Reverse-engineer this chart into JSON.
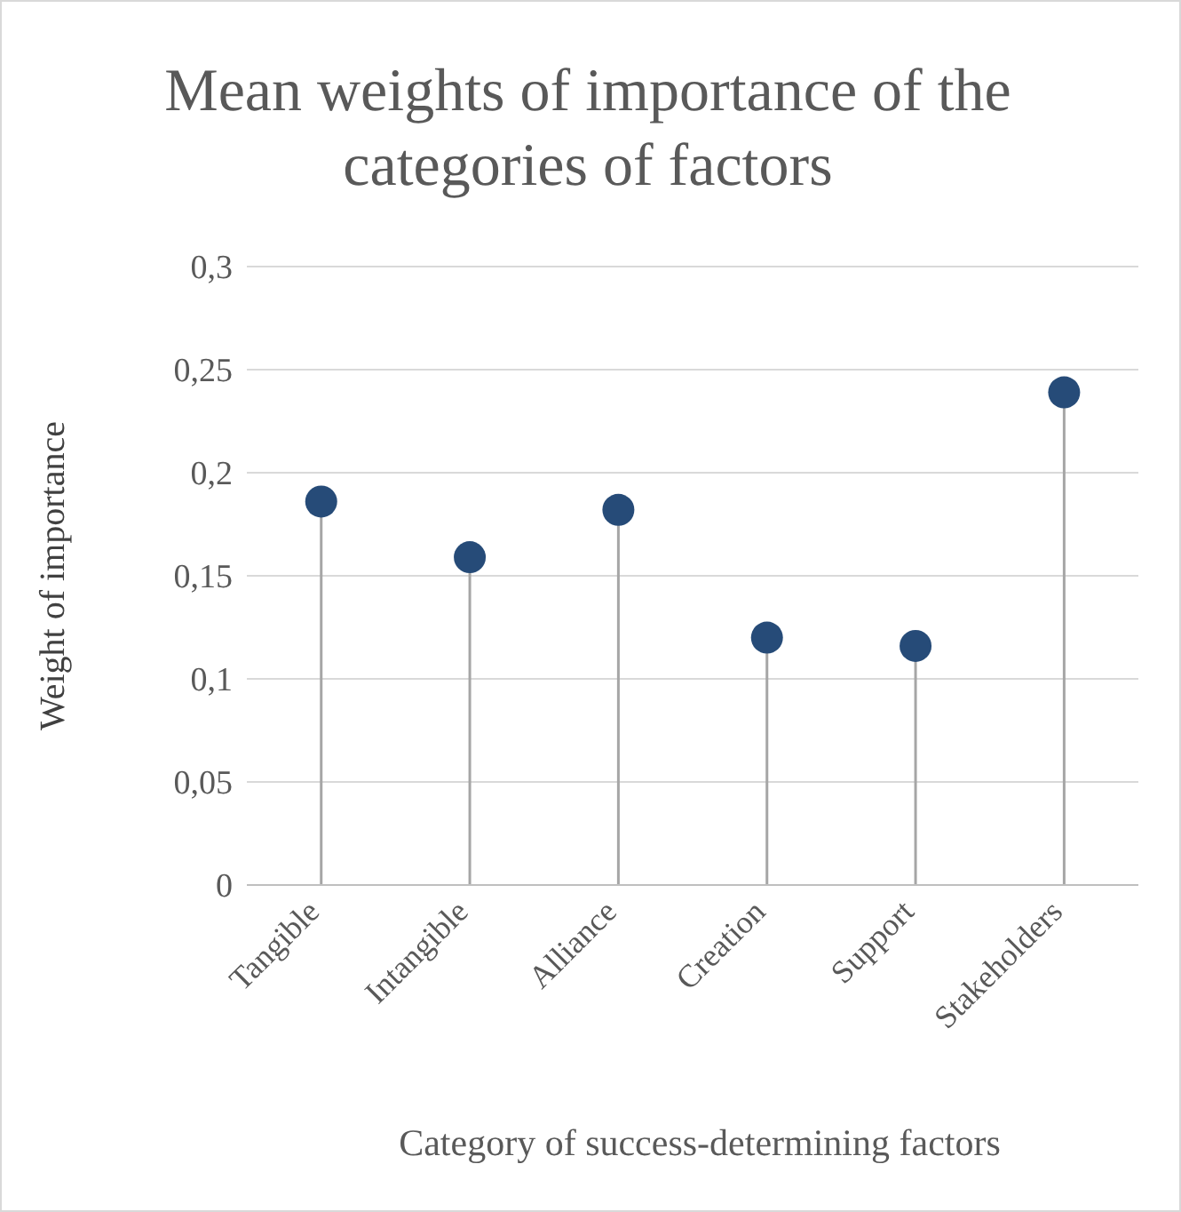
{
  "chart_data": {
    "type": "lollipop",
    "title": "Mean weights of importance of the categories of factors",
    "xlabel": "Category of success-determining factors",
    "ylabel": "Weight of importance",
    "categories": [
      "Tangible",
      "Intangible",
      "Alliance",
      "Creation",
      "Support",
      "Stakeholders"
    ],
    "values": [
      0.186,
      0.159,
      0.182,
      0.12,
      0.116,
      0.239
    ],
    "color": "#264b78",
    "ylim": [
      0,
      0.3
    ],
    "yticks": [
      {
        "value": 0,
        "label": "0"
      },
      {
        "value": 0.05,
        "label": "0,05"
      },
      {
        "value": 0.1,
        "label": "0,1"
      },
      {
        "value": 0.15,
        "label": "0,15"
      },
      {
        "value": 0.2,
        "label": "0,2"
      },
      {
        "value": 0.25,
        "label": "0,25"
      },
      {
        "value": 0.3,
        "label": "0,3"
      }
    ],
    "grid": "y"
  }
}
